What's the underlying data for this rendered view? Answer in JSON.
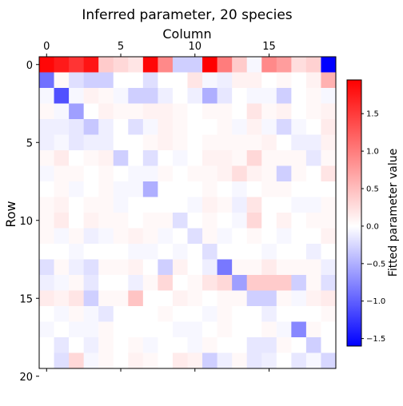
{
  "chart_data": {
    "type": "heatmap",
    "title": "Inferred parameter, 20 species",
    "xlabel": "Column",
    "ylabel": "Row",
    "colorbar_label": "Fitted parameter value",
    "x_ticks": [
      0,
      5,
      10,
      15
    ],
    "y_ticks": [
      0,
      5,
      10,
      15,
      20
    ],
    "colorbar_ticks": [
      1.5,
      1.0,
      0.5,
      0.0,
      -0.5,
      -1.0,
      -1.5
    ],
    "colorbar_tick_labels": [
      "1.5",
      "1.0",
      "0.5",
      "0.0",
      "−0.5",
      "−1.0",
      "−1.5"
    ],
    "color_range": [
      -1.6,
      1.95
    ],
    "colormap": {
      "low": "#0000ff",
      "mid": "#ffffff",
      "high": "#ff0000"
    },
    "x_axis_position": "top",
    "grid": false,
    "rows": 20,
    "cols": 20,
    "values": [
      [
        1.9,
        1.75,
        1.55,
        1.8,
        0.4,
        0.3,
        0.2,
        1.9,
        0.9,
        -0.3,
        -0.3,
        1.95,
        1.0,
        0.4,
        -0.05,
        0.9,
        0.75,
        0.25,
        0.35,
        -1.6
      ],
      [
        -0.9,
        0.05,
        -0.2,
        -0.3,
        -0.3,
        0.0,
        0.0,
        -0.2,
        0.0,
        0.0,
        0.2,
        -0.05,
        -0.1,
        0.1,
        0.1,
        0.0,
        0.05,
        0.0,
        0.1,
        0.6
      ],
      [
        -0.05,
        -1.1,
        -0.05,
        0.1,
        0.05,
        -0.05,
        -0.3,
        -0.3,
        -0.1,
        0.0,
        -0.1,
        -0.5,
        -0.15,
        0.0,
        -0.05,
        -0.05,
        -0.3,
        0.0,
        0.05,
        -0.05
      ],
      [
        0.05,
        -0.05,
        -0.6,
        0.0,
        0.1,
        0.05,
        0.05,
        0.1,
        0.1,
        0.05,
        0.0,
        0.05,
        0.05,
        0.0,
        0.2,
        0.05,
        0.1,
        0.0,
        0.05,
        0.1
      ],
      [
        -0.1,
        -0.1,
        -0.15,
        -0.35,
        -0.1,
        0.0,
        -0.2,
        -0.05,
        0.1,
        0.05,
        0.0,
        0.0,
        0.05,
        -0.05,
        0.1,
        -0.05,
        -0.25,
        -0.05,
        0.0,
        0.15
      ],
      [
        -0.1,
        -0.05,
        -0.15,
        -0.1,
        -0.1,
        0.0,
        0.0,
        0.05,
        0.1,
        0.05,
        0.0,
        0.05,
        0.05,
        0.05,
        0.05,
        0.1,
        0.0,
        -0.1,
        -0.1,
        0.1
      ],
      [
        0.05,
        0.15,
        0.0,
        0.05,
        0.1,
        -0.3,
        0.0,
        -0.2,
        0.0,
        -0.05,
        0.0,
        0.1,
        0.1,
        0.05,
        0.3,
        0.05,
        0.05,
        0.05,
        -0.15,
        0.05
      ],
      [
        -0.05,
        0.05,
        0.05,
        0.0,
        0.05,
        0.0,
        -0.05,
        -0.05,
        0.05,
        0.0,
        0.05,
        0.05,
        0.1,
        0.25,
        0.1,
        0.05,
        -0.3,
        0.05,
        0.0,
        0.2
      ],
      [
        0.0,
        0.05,
        -0.05,
        0.0,
        0.05,
        -0.05,
        -0.05,
        -0.5,
        0.0,
        0.0,
        0.0,
        0.05,
        0.0,
        -0.05,
        0.0,
        0.05,
        0.05,
        0.0,
        0.0,
        0.0
      ],
      [
        0.05,
        0.1,
        0.0,
        0.05,
        0.05,
        -0.05,
        0.0,
        0.0,
        0.0,
        0.0,
        -0.05,
        0.1,
        0.05,
        -0.1,
        0.2,
        0.0,
        0.0,
        -0.05,
        -0.05,
        0.05
      ],
      [
        0.05,
        0.15,
        0.0,
        0.1,
        0.05,
        0.05,
        0.0,
        0.05,
        0.05,
        -0.2,
        0.0,
        0.05,
        0.0,
        -0.05,
        0.3,
        0.0,
        0.1,
        0.0,
        0.05,
        0.05
      ],
      [
        0.05,
        -0.05,
        0.05,
        -0.1,
        -0.05,
        0.05,
        0.1,
        0.05,
        -0.05,
        0.0,
        -0.2,
        0.05,
        -0.05,
        0.0,
        0.05,
        0.0,
        -0.05,
        0.0,
        0.0,
        0.1
      ],
      [
        0.0,
        0.0,
        -0.05,
        0.0,
        0.0,
        0.0,
        -0.05,
        -0.05,
        0.0,
        -0.05,
        0.0,
        -0.2,
        0.0,
        0.0,
        0.0,
        -0.05,
        0.0,
        0.0,
        -0.1,
        0.0
      ],
      [
        -0.2,
        0.05,
        -0.1,
        -0.2,
        0.05,
        0.05,
        0.1,
        0.0,
        -0.3,
        0.1,
        0.0,
        -0.1,
        -0.85,
        0.05,
        0.05,
        0.15,
        0.05,
        0.05,
        0.05,
        -0.1
      ],
      [
        -0.1,
        -0.05,
        0.05,
        -0.15,
        0.0,
        0.0,
        -0.1,
        0.05,
        0.3,
        0.0,
        0.05,
        0.2,
        0.3,
        -0.6,
        0.4,
        0.4,
        0.4,
        -0.3,
        0.05,
        -0.2
      ],
      [
        0.15,
        0.1,
        0.2,
        -0.3,
        0.05,
        0.05,
        0.45,
        0.0,
        0.0,
        0.1,
        0.05,
        0.0,
        0.05,
        0.05,
        -0.3,
        -0.3,
        0.05,
        -0.05,
        0.1,
        0.15
      ],
      [
        0.0,
        -0.05,
        0.05,
        -0.05,
        -0.15,
        0.0,
        0.0,
        0.0,
        0.05,
        0.0,
        0.0,
        -0.05,
        0.05,
        0.0,
        0.0,
        -0.1,
        0.0,
        0.0,
        0.0,
        0.05
      ],
      [
        -0.05,
        0.0,
        -0.05,
        -0.05,
        0.05,
        0.0,
        0.0,
        0.0,
        0.0,
        -0.05,
        -0.05,
        0.0,
        0.05,
        0.0,
        0.0,
        0.05,
        -0.05,
        -0.75,
        0.05,
        0.0
      ],
      [
        0.0,
        -0.15,
        0.0,
        -0.1,
        0.05,
        0.0,
        0.05,
        -0.05,
        0.0,
        0.0,
        -0.05,
        0.05,
        0.0,
        0.0,
        -0.15,
        -0.15,
        0.05,
        0.0,
        -0.3,
        0.0
      ],
      [
        0.0,
        -0.2,
        0.3,
        -0.05,
        0.05,
        0.0,
        0.1,
        0.05,
        0.0,
        0.15,
        0.1,
        -0.3,
        -0.1,
        0.05,
        -0.15,
        -0.1,
        0.0,
        -0.15,
        -0.05,
        -0.25
      ]
    ]
  }
}
